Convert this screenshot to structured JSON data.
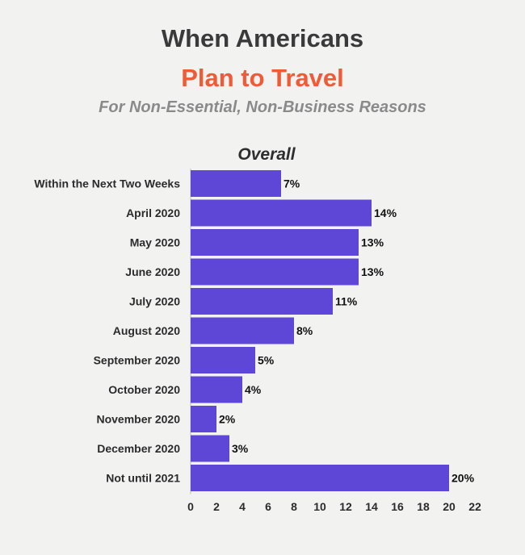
{
  "header": {
    "title_line1": "When Americans",
    "title_line2": "Plan to Travel",
    "subtitle": "For Non-Essential, Non-Business Reasons"
  },
  "colors": {
    "bar": "#5e46d6",
    "title_accent": "#f05a35"
  },
  "chart_data": {
    "type": "bar",
    "orientation": "horizontal",
    "title": "Overall",
    "categories": [
      "Within the Next Two Weeks",
      "April 2020",
      "May 2020",
      "June 2020",
      "July 2020",
      "August 2020",
      "September 2020",
      "October 2020",
      "November 2020",
      "December 2020",
      "Not until 2021"
    ],
    "values": [
      7,
      14,
      13,
      13,
      11,
      8,
      5,
      4,
      2,
      3,
      20
    ],
    "value_labels": [
      "7%",
      "14%",
      "13%",
      "13%",
      "11%",
      "8%",
      "5%",
      "4%",
      "2%",
      "3%",
      "20%"
    ],
    "xlim": [
      0,
      22
    ],
    "xticks": [
      0,
      2,
      4,
      6,
      8,
      10,
      12,
      14,
      16,
      18,
      20,
      22
    ],
    "grid": false
  }
}
